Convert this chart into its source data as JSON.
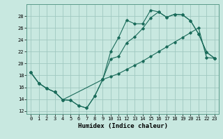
{
  "title": "",
  "xlabel": "Humidex (Indice chaleur)",
  "ylabel": "",
  "xlim": [
    -0.5,
    23.5
  ],
  "ylim": [
    11.5,
    30
  ],
  "yticks": [
    12,
    14,
    16,
    18,
    20,
    22,
    24,
    26,
    28
  ],
  "xticks": [
    0,
    1,
    2,
    3,
    4,
    5,
    6,
    7,
    8,
    9,
    10,
    11,
    12,
    13,
    14,
    15,
    16,
    17,
    18,
    19,
    20,
    21,
    22,
    23
  ],
  "bg_color": "#c8e8e0",
  "grid_color": "#a0c8c0",
  "line_color": "#1a6b5a",
  "series": [
    {
      "x": [
        0,
        1,
        2,
        3,
        4,
        5,
        6,
        7,
        8,
        9,
        10,
        11,
        12,
        13,
        14,
        15,
        16,
        17,
        18,
        19,
        20,
        21,
        22,
        23
      ],
      "y": [
        18.5,
        16.7,
        15.8,
        15.2,
        13.9,
        13.8,
        12.9,
        12.5,
        14.5,
        17.3,
        22.0,
        24.4,
        27.3,
        26.7,
        26.7,
        29.0,
        28.7,
        27.8,
        28.3,
        28.2,
        27.2,
        25.0,
        21.9,
        20.9
      ]
    },
    {
      "x": [
        0,
        1,
        2,
        3,
        4,
        9,
        10,
        11,
        12,
        13,
        14,
        15,
        16,
        17,
        18,
        19,
        20,
        21,
        22,
        23
      ],
      "y": [
        18.5,
        16.7,
        15.8,
        15.2,
        13.9,
        17.3,
        20.8,
        21.2,
        23.5,
        24.5,
        25.9,
        27.7,
        28.7,
        27.8,
        28.3,
        28.2,
        27.2,
        25.0,
        21.9,
        20.9
      ]
    },
    {
      "x": [
        0,
        1,
        2,
        3,
        4,
        5,
        6,
        7,
        8,
        9,
        10,
        11,
        12,
        13,
        14,
        15,
        16,
        17,
        18,
        19,
        20,
        21,
        22,
        23
      ],
      "y": [
        18.5,
        16.7,
        15.8,
        15.2,
        13.9,
        13.8,
        12.9,
        12.5,
        14.5,
        17.3,
        17.8,
        18.3,
        19.0,
        19.7,
        20.4,
        21.2,
        22.0,
        22.8,
        23.6,
        24.4,
        25.2,
        26.0,
        21.0,
        20.9
      ]
    }
  ],
  "tick_fontsize": 5,
  "xlabel_fontsize": 6.5
}
